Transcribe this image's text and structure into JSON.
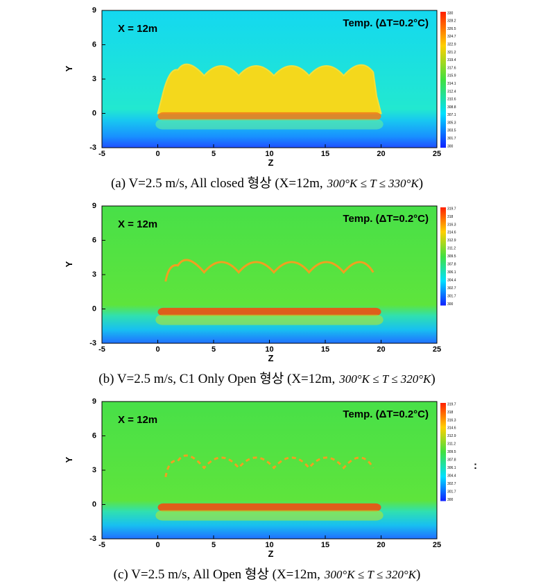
{
  "xlabel": "Z",
  "ylabel": "Y",
  "xticks": [
    -5,
    0,
    5,
    10,
    15,
    20,
    25
  ],
  "yticks": [
    9,
    6,
    3,
    0,
    -3
  ],
  "panels": [
    {
      "location": "X = 12m",
      "legend_title": "Temp. (ΔT=0.2°C)",
      "colorbar": [
        330,
        328.2,
        326.5,
        324.7,
        322.9,
        321.2,
        319.4,
        317.6,
        315.9,
        314.1,
        312.4,
        310.6,
        308.8,
        307.1,
        305.3,
        303.5,
        301.7,
        300
      ],
      "caption": "(a) V=2.5 m/s, All closed 형상 (X=12m,",
      "caption_range": "300°K ≤ T ≤ 330°K",
      "caption_end": ")"
    },
    {
      "location": "X = 12m",
      "legend_title": "Temp. (ΔT=0.2°C)",
      "colorbar": [
        319.7,
        318,
        316.3,
        314.6,
        312.9,
        311.2,
        309.5,
        307.8,
        306.1,
        304.4,
        302.7,
        301.7,
        300
      ],
      "caption": "(b) V=2.5 m/s, C1 Only Open 형상 (X=12m,",
      "caption_range": "300°K ≤ T ≤ 320°K",
      "caption_end": ")"
    },
    {
      "location": "X = 12m",
      "legend_title": "Temp. (ΔT=0.2°C)",
      "colorbar": [
        319.7,
        318,
        316.3,
        314.6,
        312.9,
        311.2,
        309.5,
        307.8,
        306.1,
        304.4,
        302.7,
        301.7,
        300
      ],
      "caption": "(c) V=2.5 m/s, All Open 형상 (X=12m,",
      "caption_range": "300°K ≤ T ≤ 320°K",
      "caption_end": ")"
    }
  ],
  "annotation": ":"
}
